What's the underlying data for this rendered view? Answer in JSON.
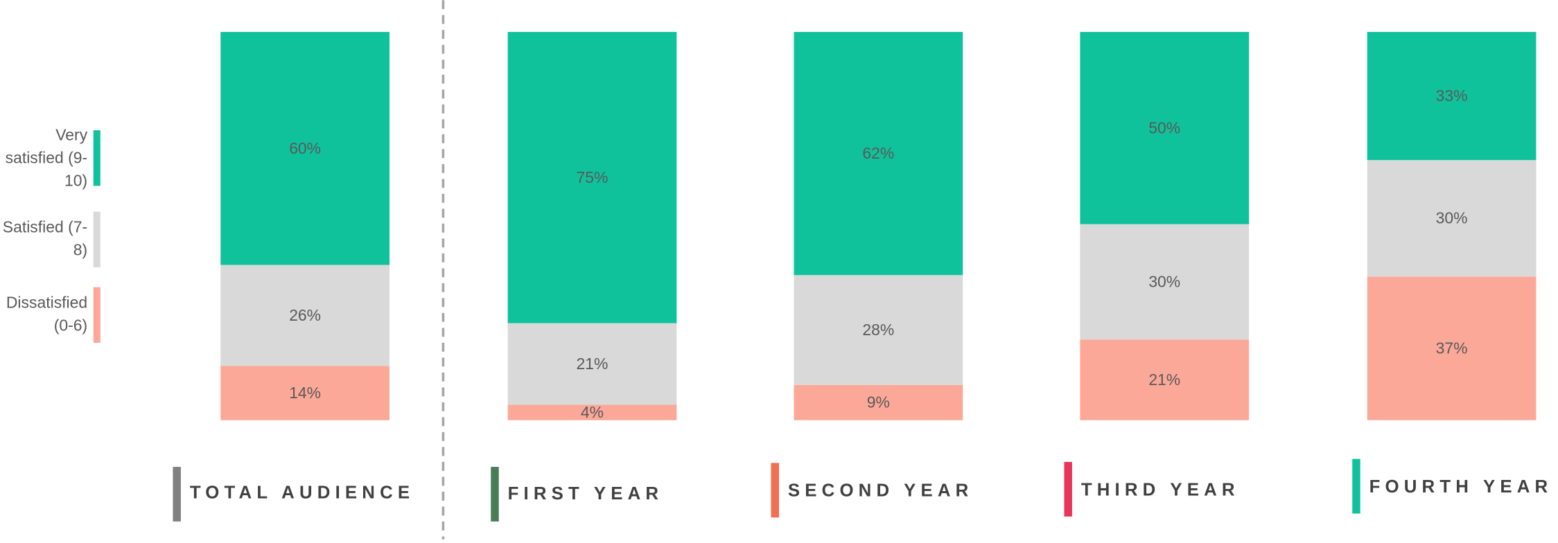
{
  "chart_data": {
    "type": "stacked_bar",
    "categories": [
      "TOTAL AUDIENCE",
      "FIRST YEAR",
      "SECOND YEAR",
      "THIRD YEAR",
      "FOURTH YEAR"
    ],
    "category_colors": [
      "#808080",
      "#4a7c59",
      "#f07050",
      "#e8365a",
      "#10c29c"
    ],
    "series": [
      {
        "name": "Dissatisfied (0-6)",
        "color": "#fca899",
        "values": [
          14,
          4,
          9,
          21,
          37
        ],
        "value_labels": [
          "14%",
          "4%",
          "9%",
          "21%",
          "37%"
        ]
      },
      {
        "name": "Satisfied (7-8)",
        "color": "#d9d9d9",
        "values": [
          26,
          21,
          28,
          30,
          30
        ],
        "value_labels": [
          "26%",
          "21%",
          "28%",
          "30%",
          "30%"
        ]
      },
      {
        "name": "Very satisfied (9-10)",
        "color": "#10c29c",
        "values": [
          60,
          75,
          62,
          50,
          33
        ],
        "value_labels": [
          "60%",
          "75%",
          "62%",
          "50%",
          "33%"
        ]
      }
    ]
  }
}
